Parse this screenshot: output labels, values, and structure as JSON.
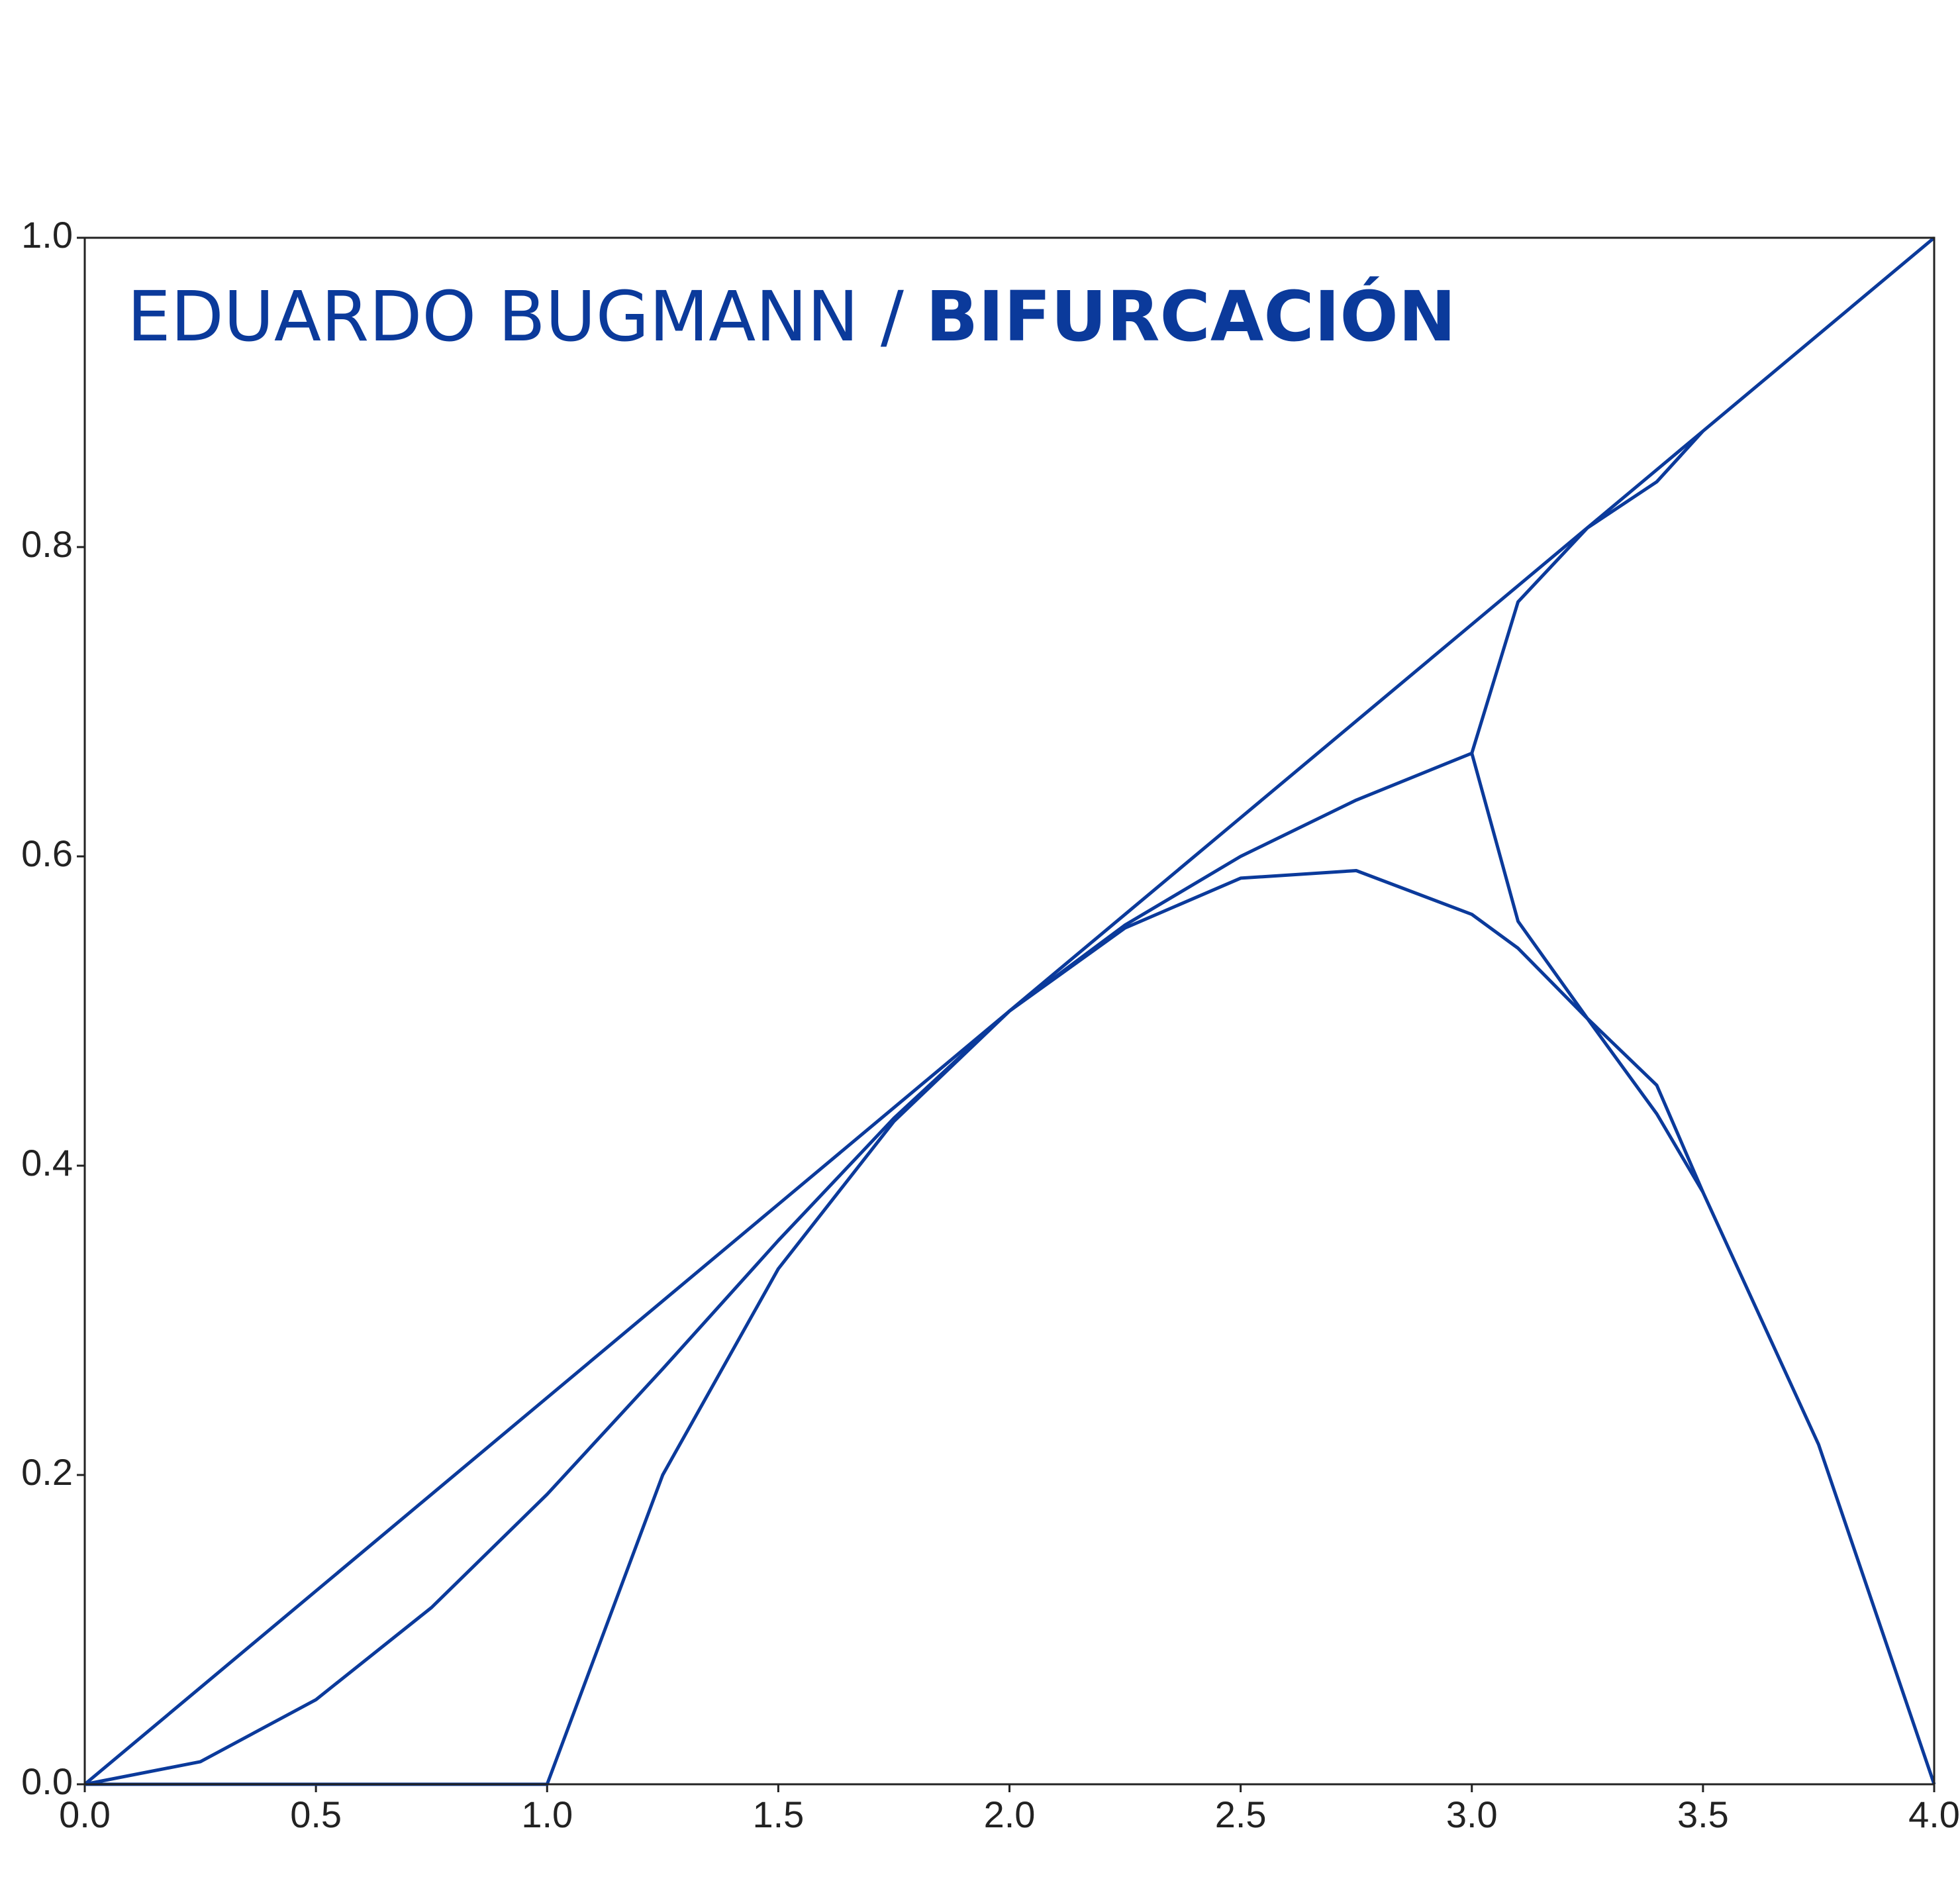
{
  "chart_data": {
    "type": "line",
    "artist": "EDUARDO BUGMANN /",
    "title": "BIFURCACIÓN",
    "color": "#0b3a9b",
    "x": [
      0,
      0.25,
      0.5,
      0.75,
      1,
      1.25,
      1.5,
      1.75,
      2,
      2.25,
      2.5,
      2.75,
      3,
      3.1,
      3.25,
      3.4,
      3.5,
      3.75,
      4
    ],
    "series": [
      {
        "values": [
          0,
          0.0625,
          0.125,
          0.1875,
          0.25,
          0.3125,
          0.375,
          0.4375,
          0.5,
          0.5625,
          0.625,
          0.6875,
          0.75,
          0.775,
          0.8125,
          0.85,
          0.875,
          0.9375,
          1
        ]
      },
      {
        "values": [
          0,
          0.0146,
          0.0547,
          0.1143,
          0.1875,
          0.2686,
          0.3516,
          0.4307,
          0.5,
          0.5537,
          0.5859,
          0.5908,
          0.5625,
          0.5406,
          0.4951,
          0.4335,
          0.3828,
          0.2197,
          0
        ]
      },
      {
        "values": [
          0,
          0,
          0,
          0,
          0,
          0.2,
          0.3333,
          0.4286,
          0.5,
          0.5556,
          0.6,
          0.6364,
          0.6667,
          0.7646,
          0.8124,
          0.8422,
          0.875,
          null,
          null
        ]
      },
      {
        "values": [
          null,
          null,
          null,
          null,
          null,
          null,
          null,
          null,
          null,
          null,
          null,
          null,
          0.6667,
          0.558,
          0.4952,
          0.452,
          0.3828,
          null,
          null
        ]
      }
    ],
    "xlim": [
      0,
      4
    ],
    "ylim": [
      0,
      1
    ],
    "xticks": [
      {
        "value": 0,
        "label": "0.0"
      },
      0.5,
      {
        "value": 1,
        "label": "1.0"
      },
      1.5,
      {
        "value": 2,
        "label": "2.0"
      },
      2.5,
      {
        "value": 3,
        "label": "3.0"
      },
      3.5,
      {
        "value": 4,
        "label": "4.0"
      }
    ],
    "yticks": [
      {
        "value": 0,
        "label": "0.0"
      },
      0.2,
      0.4,
      0.6,
      0.8,
      {
        "value": 1,
        "label": "1.0"
      }
    ]
  }
}
